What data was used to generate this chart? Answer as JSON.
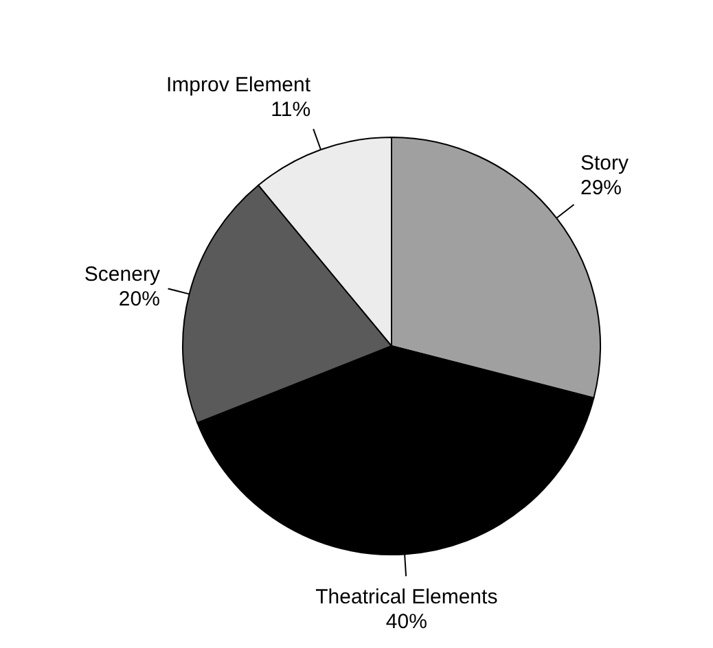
{
  "chart_data": {
    "type": "pie",
    "categories": [
      "Story",
      "Theatrical Elements",
      "Scenery",
      "Improv Element"
    ],
    "values": [
      29,
      40,
      20,
      11
    ],
    "colors": [
      "#a0a0a0",
      "#000000",
      "#5a5a5a",
      "#ececec"
    ],
    "value_labels": [
      "29%",
      "40%",
      "20%",
      "11%"
    ]
  }
}
